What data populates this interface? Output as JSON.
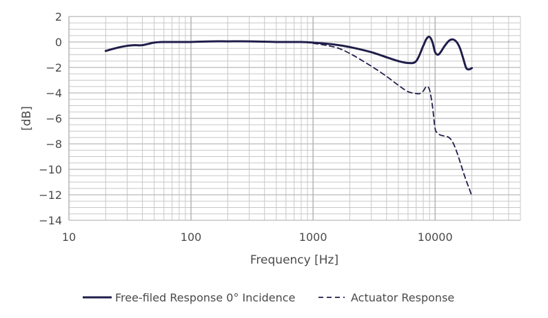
{
  "chart_data": {
    "type": "line",
    "xscale": "log",
    "xlim": [
      10,
      50000
    ],
    "ylim": [
      -14,
      2
    ],
    "xlabel": "Frequency [Hz]",
    "ylabel": "[dB]",
    "grid": true,
    "legend_position": "bottom",
    "xticks": [
      10,
      100,
      1000,
      10000
    ],
    "xtick_labels": [
      "10",
      "100",
      "1000",
      "10000"
    ],
    "yticks": [
      2,
      0,
      -2,
      -4,
      -6,
      -8,
      -10,
      -12,
      -14
    ],
    "ytick_labels": [
      "2",
      "0",
      "−2",
      "−4",
      "−6",
      "−8",
      "−10",
      "−12",
      "−14"
    ],
    "colors": {
      "series": "#1f1d4a",
      "grid": "#c8c8c8"
    },
    "series": [
      {
        "name": "Free-filed Response 0° Incidence",
        "style": "solid",
        "x": [
          20,
          25,
          30,
          35,
          40,
          50,
          60,
          80,
          100,
          150,
          200,
          300,
          500,
          800,
          1000,
          1500,
          2000,
          3000,
          4000,
          5000,
          6000,
          7000,
          8000,
          8500,
          9000,
          9500,
          10000,
          10500,
          11000,
          12000,
          13000,
          14000,
          15000,
          16000,
          17000,
          18000,
          19000,
          20000
        ],
        "y": [
          -0.7,
          -0.45,
          -0.3,
          -0.25,
          -0.25,
          -0.05,
          0.0,
          0.0,
          0.0,
          0.05,
          0.05,
          0.05,
          0.0,
          0.0,
          -0.05,
          -0.2,
          -0.4,
          -0.8,
          -1.2,
          -1.5,
          -1.65,
          -1.5,
          -0.3,
          0.25,
          0.4,
          0.0,
          -0.8,
          -1.0,
          -0.85,
          -0.3,
          0.1,
          0.2,
          0.0,
          -0.5,
          -1.3,
          -2.05,
          -2.15,
          -2.05
        ]
      },
      {
        "name": "Actuator Response",
        "style": "dashed",
        "x": [
          1000,
          1500,
          2000,
          3000,
          4000,
          5000,
          6000,
          7000,
          7500,
          8000,
          8500,
          9000,
          9500,
          10000,
          10500,
          11000,
          12000,
          13000,
          14000,
          15000,
          16000,
          17000,
          18000,
          19000,
          20000
        ],
        "y": [
          -0.1,
          -0.4,
          -0.9,
          -1.9,
          -2.7,
          -3.4,
          -3.9,
          -4.05,
          -4.05,
          -3.85,
          -3.5,
          -3.75,
          -5.0,
          -6.8,
          -7.15,
          -7.3,
          -7.4,
          -7.5,
          -7.9,
          -8.6,
          -9.4,
          -10.2,
          -10.9,
          -11.5,
          -12.1
        ]
      }
    ]
  }
}
